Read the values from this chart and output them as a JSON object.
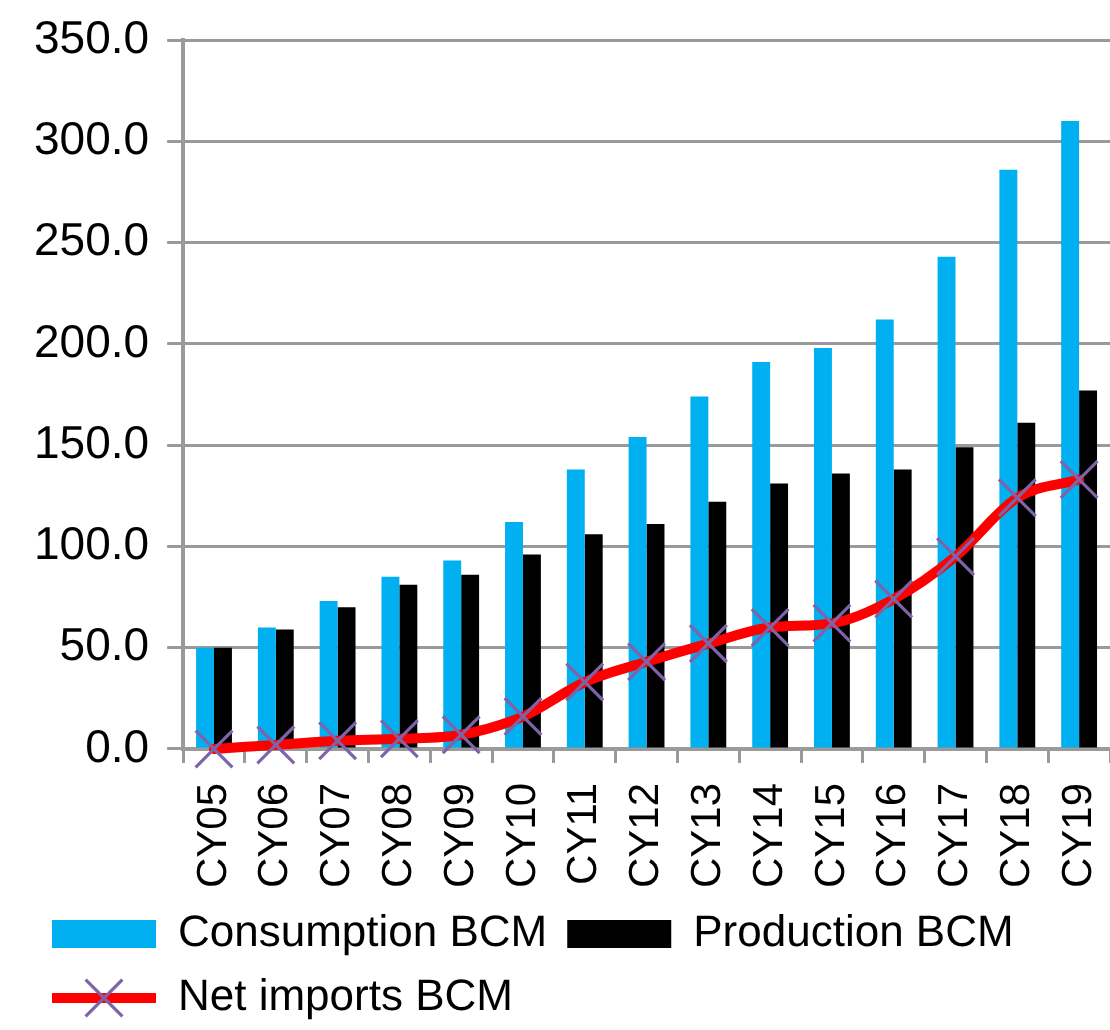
{
  "chart_data": {
    "type": "bar",
    "categories": [
      "CY05",
      "CY06",
      "CY07",
      "CY08",
      "CY09",
      "CY10",
      "CY11",
      "CY12",
      "CY13",
      "CY14",
      "CY15",
      "CY16",
      "CY17",
      "CY18",
      "CY19"
    ],
    "series": [
      {
        "name": "Consumption BCM",
        "color": "#00b0f0",
        "values": [
          50,
          60,
          73,
          85,
          93,
          112,
          138,
          154,
          174,
          191,
          198,
          212,
          243,
          286,
          310
        ]
      },
      {
        "name": "Production BCM",
        "color": "#000000",
        "values": [
          50,
          59,
          70,
          81,
          86,
          96,
          106,
          111,
          122,
          131,
          136,
          138,
          149,
          161,
          177
        ]
      },
      {
        "name": "Net imports BCM",
        "type": "line",
        "color": "#ff0000",
        "marker": "cross",
        "values": [
          0,
          2,
          4,
          5,
          7,
          16,
          33,
          43,
          52,
          60,
          62,
          74,
          95,
          124,
          133
        ]
      }
    ],
    "ylim": [
      0,
      350
    ],
    "yticks": [
      {
        "value": 0,
        "label": "0.0"
      },
      {
        "value": 50,
        "label": "50.0"
      },
      {
        "value": 100,
        "label": "100.0"
      },
      {
        "value": 150,
        "label": "150.0"
      },
      {
        "value": 200,
        "label": "200.0"
      },
      {
        "value": 250,
        "label": "250.0"
      },
      {
        "value": 300,
        "label": "300.0"
      },
      {
        "value": 350,
        "label": "350.0"
      }
    ],
    "grid": "y",
    "legend": "bottom"
  }
}
